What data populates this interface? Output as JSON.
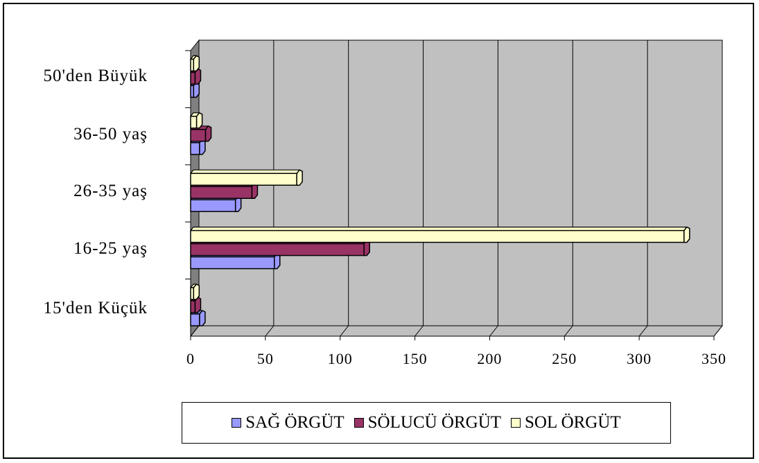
{
  "chart_data": {
    "type": "bar",
    "orientation": "horizontal",
    "style": "3d-clustered",
    "categories": [
      "15'den Küçük",
      "16-25 yaş",
      "26-35 yaş",
      "36-50 yaş",
      "50'den Büyük"
    ],
    "series": [
      {
        "name": "SAĞ ÖRGÜT",
        "color": "#9999FF",
        "values": [
          6,
          56,
          30,
          6,
          2
        ]
      },
      {
        "name": "SÖLUCÜ ÖRGÜT",
        "color": "#993366",
        "values": [
          3,
          116,
          41,
          10,
          3
        ]
      },
      {
        "name": "SOL ÖRGÜT",
        "color": "#FFFFCC",
        "values": [
          2,
          330,
          71,
          4,
          2
        ]
      }
    ],
    "xlim": [
      0,
      350
    ],
    "xticks": [
      "0",
      "50",
      "100",
      "150",
      "200",
      "250",
      "300",
      "350"
    ],
    "legend_position": "bottom",
    "grid": true,
    "plot_background": "#C0C0C0"
  }
}
